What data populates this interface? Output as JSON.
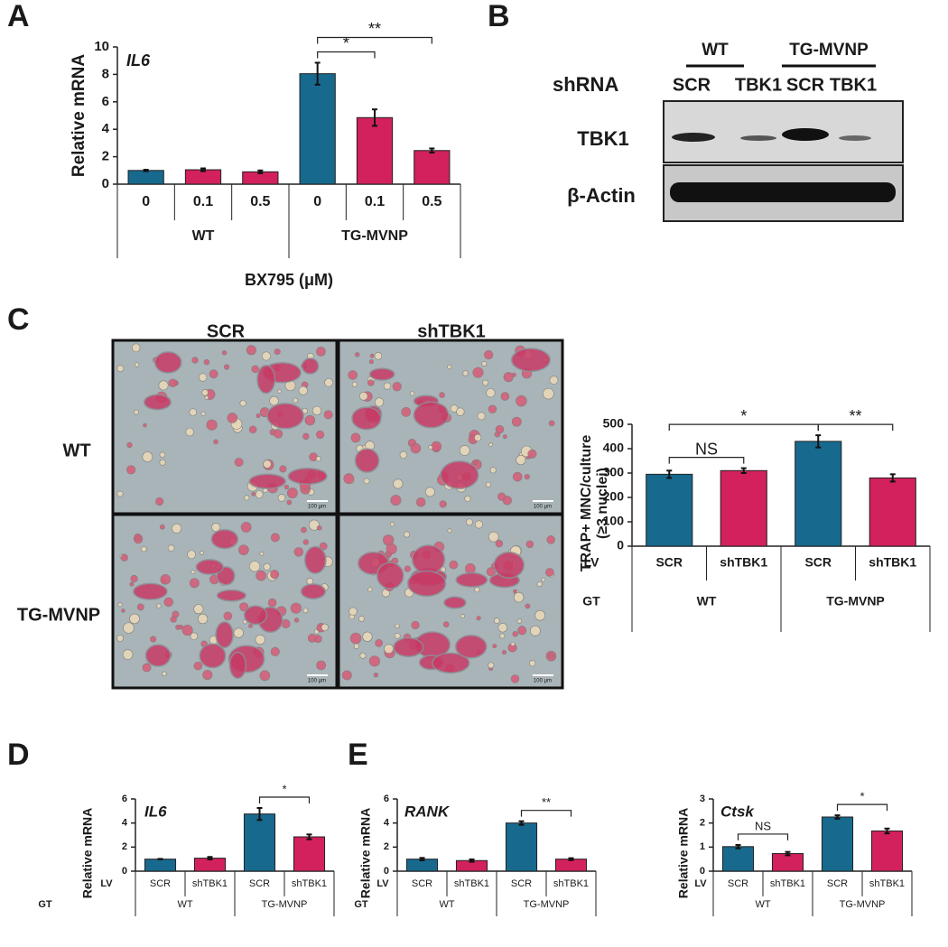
{
  "panel_labels": [
    "A",
    "B",
    "C",
    "D",
    "E"
  ],
  "blot": {
    "row_label": "shRNA",
    "groups": [
      "WT",
      "TG-MVNP"
    ],
    "lanes": [
      "SCR",
      "TBK1",
      "SCR",
      "TBK1"
    ],
    "bands": [
      "TBK1",
      "β-Actin"
    ]
  },
  "micrographs": {
    "columns": [
      "SCR",
      "shTBK1"
    ],
    "rows": [
      "WT",
      "TG-MVNP"
    ],
    "scale_bar": "100 μm"
  },
  "chart_data": [
    {
      "type": "bar",
      "title": "IL6",
      "y_label": "Relative mRNA",
      "x_label": "BX795 (μM)",
      "categories": [
        "0",
        "0.1",
        "0.5",
        "0",
        "0.1",
        "0.5"
      ],
      "groups": [
        "WT",
        "TG-MVNP"
      ],
      "values": [
        1.0,
        1.05,
        0.9,
        8.05,
        4.85,
        2.45
      ],
      "errors": [
        0.05,
        0.1,
        0.1,
        0.8,
        0.6,
        0.15
      ],
      "colors": [
        "#17698e",
        "#d2215d",
        "#d2215d",
        "#17698e",
        "#d2215d",
        "#d2215d"
      ],
      "ylim": [
        0,
        10
      ],
      "yticks": [
        0,
        2,
        4,
        6,
        8,
        10
      ],
      "significance": [
        {
          "label": "*",
          "between": [
            3,
            4
          ]
        },
        {
          "label": "**",
          "between": [
            3,
            5
          ]
        }
      ]
    },
    {
      "type": "bar",
      "y_label": [
        "TRAP+ MNC/culture",
        "(≥3 nuclei)"
      ],
      "row_labels": [
        "LV",
        "GT"
      ],
      "categories": [
        "SCR",
        "shTBK1",
        "SCR",
        "shTBK1"
      ],
      "groups": [
        "WT",
        "TG-MVNP"
      ],
      "values": [
        295,
        310,
        430,
        280
      ],
      "errors": [
        15,
        10,
        25,
        15
      ],
      "colors": [
        "#17698e",
        "#d2215d",
        "#17698e",
        "#d2215d"
      ],
      "ylim": [
        0,
        500
      ],
      "yticks": [
        0,
        100,
        200,
        300,
        400,
        500
      ],
      "significance": [
        {
          "label": "NS",
          "between": [
            0,
            1
          ]
        },
        {
          "label": "*",
          "between": [
            0,
            2
          ]
        },
        {
          "label": "**",
          "between": [
            2,
            3
          ]
        }
      ]
    },
    {
      "type": "bar",
      "title": "IL6",
      "y_label": "Relative mRNA",
      "row_labels": [
        "LV",
        "GT"
      ],
      "categories": [
        "SCR",
        "shTBK1",
        "SCR",
        "shTBK1"
      ],
      "groups": [
        "WT",
        "TG-MVNP"
      ],
      "values": [
        1.0,
        1.08,
        4.75,
        2.85
      ],
      "errors": [
        0.02,
        0.1,
        0.5,
        0.2
      ],
      "colors": [
        "#17698e",
        "#d2215d",
        "#17698e",
        "#d2215d"
      ],
      "ylim": [
        0,
        6
      ],
      "yticks": [
        0,
        2,
        4,
        6
      ],
      "significance": [
        {
          "label": "*",
          "between": [
            2,
            3
          ]
        }
      ]
    },
    {
      "type": "bar",
      "title": "RANK",
      "y_label": "Relative mRNA",
      "row_labels": [
        "LV",
        "GT"
      ],
      "categories": [
        "SCR",
        "shTBK1",
        "SCR",
        "shTBK1"
      ],
      "groups": [
        "WT",
        "TG-MVNP"
      ],
      "values": [
        1.0,
        0.88,
        4.0,
        1.0
      ],
      "errors": [
        0.1,
        0.1,
        0.15,
        0.08
      ],
      "colors": [
        "#17698e",
        "#d2215d",
        "#17698e",
        "#d2215d"
      ],
      "ylim": [
        0,
        6
      ],
      "yticks": [
        0,
        2,
        4,
        6
      ],
      "significance": [
        {
          "label": "**",
          "between": [
            2,
            3
          ]
        }
      ]
    },
    {
      "type": "bar",
      "title": "Ctsk",
      "y_label": "Relative mRNA",
      "row_labels": [
        "LV"
      ],
      "categories": [
        "SCR",
        "shTBK1",
        "SCR",
        "shTBK1"
      ],
      "groups": [
        "WT",
        "TG-MVNP"
      ],
      "values": [
        1.02,
        0.73,
        2.25,
        1.67
      ],
      "errors": [
        0.07,
        0.07,
        0.07,
        0.1
      ],
      "colors": [
        "#17698e",
        "#d2215d",
        "#17698e",
        "#d2215d"
      ],
      "ylim": [
        0,
        3
      ],
      "yticks": [
        0,
        1,
        2,
        3
      ],
      "significance": [
        {
          "label": "NS",
          "between": [
            0,
            1
          ]
        },
        {
          "label": "*",
          "between": [
            2,
            3
          ]
        }
      ]
    }
  ]
}
